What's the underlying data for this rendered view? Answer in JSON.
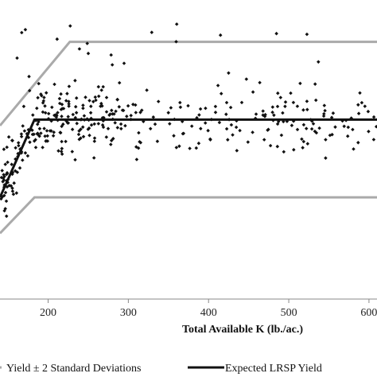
{
  "chart_data": {
    "type": "scatter",
    "xlabel": "Total Available K (lb./ac.)",
    "ylabel": "",
    "xlim": [
      140,
      610
    ],
    "ylim": [
      0,
      100
    ],
    "x_ticks": [
      "200",
      "300",
      "400",
      "500",
      "600"
    ],
    "x_tick_values": [
      200,
      300,
      400,
      500,
      600
    ],
    "grid": false,
    "legend_placement": "bottom",
    "colors": {
      "points": "#111111",
      "lrsp_line": "#111111",
      "band_line": "#aaaaaa",
      "axis": "#888888"
    },
    "series": [
      {
        "name": "Yield ± 2 Standard Deviations",
        "kind": "band",
        "upper": {
          "x": [
            140,
            227,
            610
          ],
          "y": [
            58,
            86,
            86
          ]
        },
        "lower": {
          "x": [
            140,
            183,
            610
          ],
          "y": [
            22,
            34,
            34
          ]
        }
      },
      {
        "name": "Expected LRSP Yield",
        "kind": "line",
        "x": [
          140,
          183,
          610
        ],
        "y": [
          34,
          60,
          60
        ]
      },
      {
        "name": "observations",
        "kind": "scatter",
        "seed": 7,
        "count": 420,
        "x_range": [
          140,
          610
        ],
        "mean_y_by_lrsp": true,
        "sd": 10.5
      }
    ]
  },
  "legend": {
    "band_label": "Yield ± 2 Standard Deviations",
    "line_label": "Expected LRSP Yield"
  }
}
